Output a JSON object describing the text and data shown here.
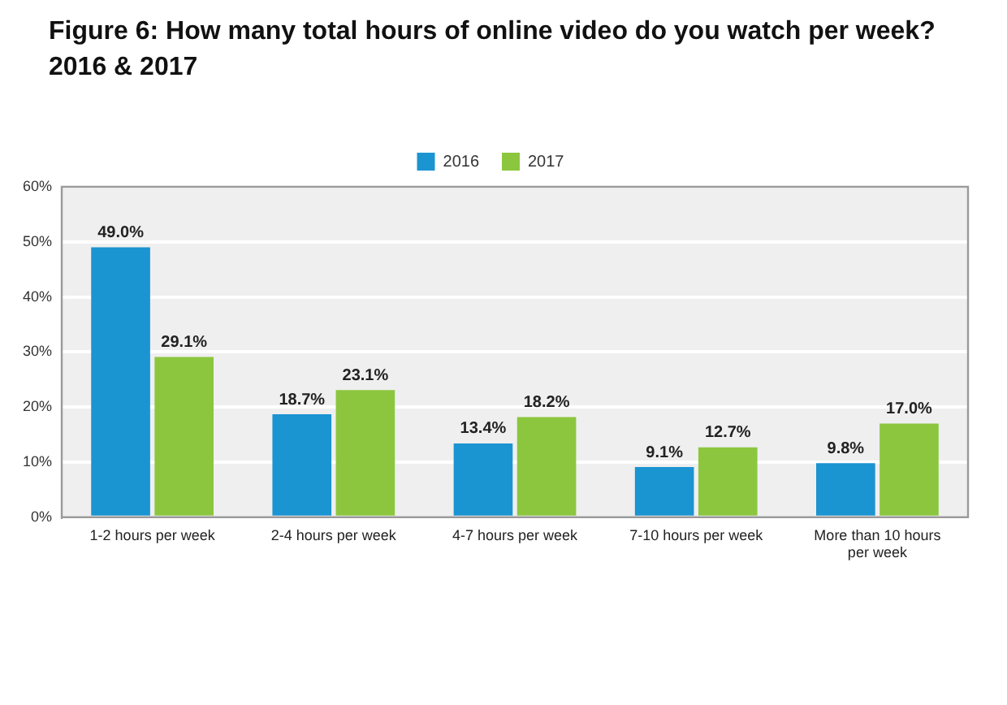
{
  "chart_data": {
    "type": "bar",
    "title": "Figure 6: How many total hours of online video do you watch per week? 2016 & 2017",
    "categories": [
      "1-2 hours per week",
      "2-4 hours per week",
      "4-7 hours per week",
      "7-10 hours per week",
      "More than 10 hours per week"
    ],
    "series": [
      {
        "name": "2016",
        "color": "#1b94d2",
        "values": [
          49.0,
          18.7,
          13.4,
          9.1,
          9.8
        ],
        "value_labels": [
          "49.0%",
          "18.7%",
          "13.4%",
          "9.1%",
          "9.8%"
        ]
      },
      {
        "name": "2017",
        "color": "#8cc63e",
        "values": [
          29.1,
          23.1,
          18.2,
          12.7,
          17.0
        ],
        "value_labels": [
          "29.1%",
          "23.1%",
          "18.2%",
          "12.7%",
          "17.0%"
        ]
      }
    ],
    "ylim": [
      0,
      60
    ],
    "yticks": [
      {
        "value": 0,
        "label": "0%"
      },
      {
        "value": 10,
        "label": "10%"
      },
      {
        "value": 20,
        "label": "20%"
      },
      {
        "value": 30,
        "label": "30%"
      },
      {
        "value": 40,
        "label": "40%"
      },
      {
        "value": 50,
        "label": "50%"
      },
      {
        "value": 60,
        "label": "60%"
      }
    ],
    "grid": "y",
    "legend": "top"
  }
}
